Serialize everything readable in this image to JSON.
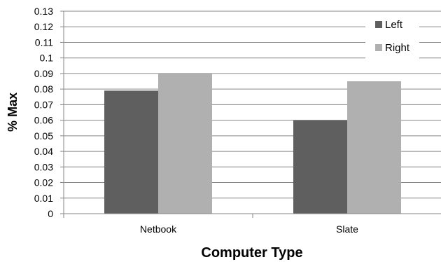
{
  "chart_data": {
    "type": "bar",
    "title": "",
    "xlabel": "Computer Type",
    "ylabel": "% Max",
    "categories": [
      "Netbook",
      "Slate"
    ],
    "series": [
      {
        "name": "Left",
        "values": [
          0.079,
          0.06
        ],
        "color": "#5f5f5f"
      },
      {
        "name": "Right",
        "values": [
          0.09,
          0.085
        ],
        "color": "#b0b0b0"
      }
    ],
    "ylim": [
      0,
      0.13
    ],
    "ytick_step": 0.01,
    "y_tick_labels": [
      "0",
      "0.01",
      "0.02",
      "0.03",
      "0.04",
      "0.05",
      "0.06",
      "0.07",
      "0.08",
      "0.09",
      "0.1",
      "0.11",
      "0.12",
      "0.13"
    ],
    "grid": true,
    "legend_position": "top-right"
  }
}
